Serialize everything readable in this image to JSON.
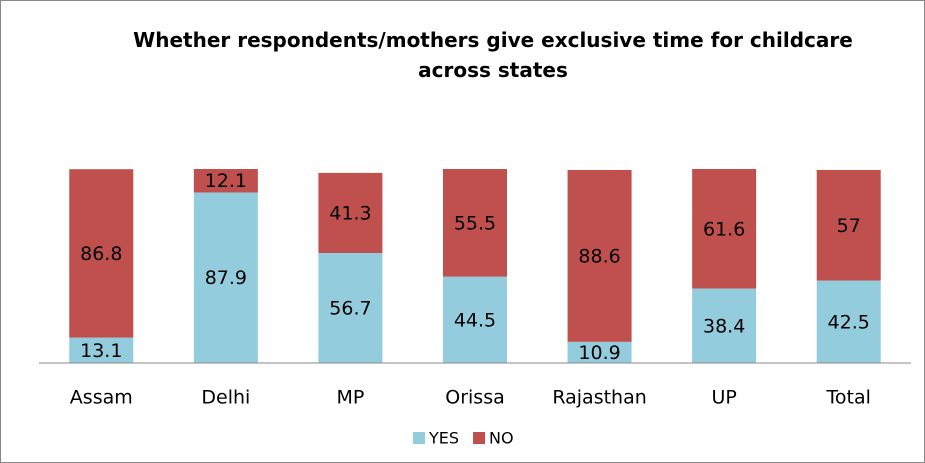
{
  "chart_data": {
    "type": "stacked_bar",
    "title": "Whether respondents/mothers give exclusive time for childcare across states",
    "categories": [
      "Assam",
      "Delhi",
      "MP",
      "Orissa",
      "Rajasthan",
      "UP",
      "Total"
    ],
    "series": [
      {
        "name": "YES",
        "color": "#93cddd",
        "values": [
          13.1,
          87.9,
          56.7,
          44.5,
          10.9,
          38.4,
          42.5
        ]
      },
      {
        "name": "NO",
        "color": "#c0504d",
        "values": [
          86.8,
          12.1,
          41.3,
          55.5,
          88.6,
          61.6,
          57
        ]
      }
    ],
    "ylim": [
      0,
      100
    ],
    "legend": "bottom"
  }
}
